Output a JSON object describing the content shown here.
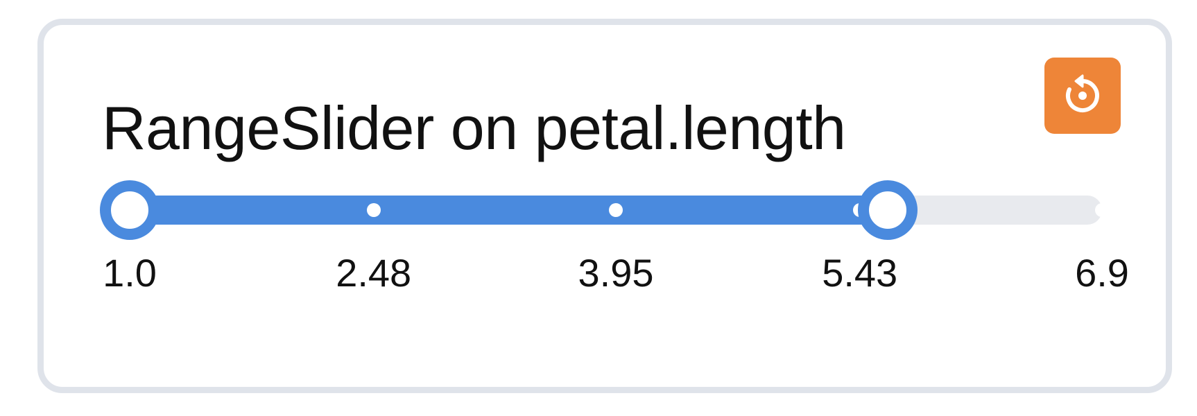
{
  "widget": {
    "title": "RangeSlider on petal.length",
    "reset_icon": "reset-icon",
    "accent_color": "#4a8ade",
    "reset_color": "#ee8538"
  },
  "slider": {
    "min": 1.0,
    "max": 6.9,
    "selected_low": 1.0,
    "selected_high": 5.6,
    "ticks": [
      {
        "value": 1.0,
        "label": "1.0"
      },
      {
        "value": 2.48,
        "label": "2.48"
      },
      {
        "value": 3.95,
        "label": "3.95"
      },
      {
        "value": 5.43,
        "label": "5.43"
      },
      {
        "value": 6.9,
        "label": "6.9"
      }
    ]
  }
}
